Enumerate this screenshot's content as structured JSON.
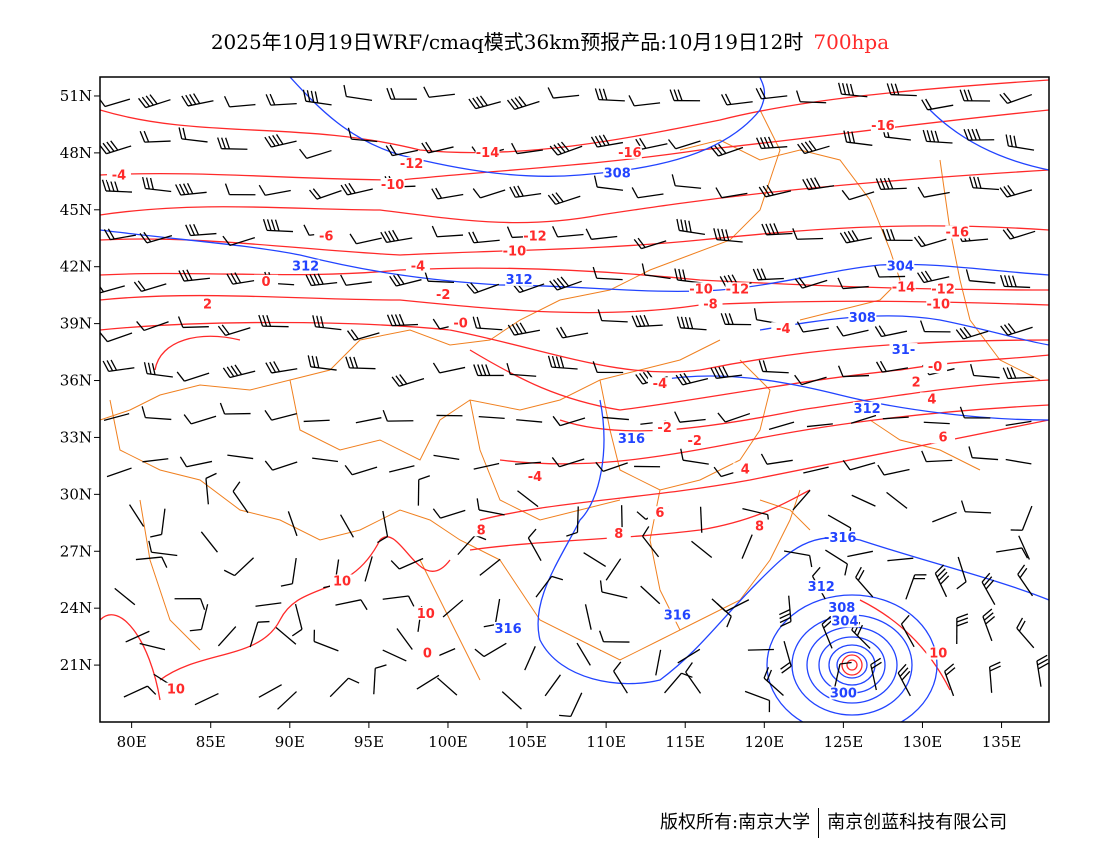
{
  "title": {
    "main": "2025年10月19日WRF/cmaq模式36km预报产品:10月19日12时",
    "level": "700hpa"
  },
  "footer": {
    "left": "版权所有:南京大学",
    "right": "南京创蓝科技有限公司"
  },
  "colors": {
    "isotherm": "#ff2a2a",
    "height": "#2244ff",
    "border": "#f08020",
    "barb": "#000000"
  },
  "map": {
    "lon_range": [
      78,
      138
    ],
    "lat_range": [
      18,
      52
    ],
    "lon_ticks": [
      "80E",
      "85E",
      "90E",
      "95E",
      "100E",
      "105E",
      "110E",
      "115E",
      "120E",
      "125E",
      "130E",
      "135E"
    ],
    "lat_ticks": [
      "51N",
      "48N",
      "45N",
      "42N",
      "39N",
      "36N",
      "33N",
      "30N",
      "27N",
      "24N",
      "21N"
    ],
    "temperature_labels": [
      {
        "t": "-4",
        "lon": 79.2,
        "lat": 46.7
      },
      {
        "t": "-12",
        "lon": 97.7,
        "lat": 47.3
      },
      {
        "t": "-14",
        "lon": 102.5,
        "lat": 47.9
      },
      {
        "t": "-16",
        "lon": 111.5,
        "lat": 47.9
      },
      {
        "t": "-10",
        "lon": 96.5,
        "lat": 46.2
      },
      {
        "t": "-6",
        "lon": 92.3,
        "lat": 43.5
      },
      {
        "t": "-12",
        "lon": 105.5,
        "lat": 43.5
      },
      {
        "t": "-10",
        "lon": 104.2,
        "lat": 42.7
      },
      {
        "t": "-4",
        "lon": 98.1,
        "lat": 41.9
      },
      {
        "t": "0",
        "lon": 88.5,
        "lat": 41.1
      },
      {
        "t": "-2",
        "lon": 99.7,
        "lat": 40.4
      },
      {
        "t": "2",
        "lon": 84.8,
        "lat": 39.9
      },
      {
        "t": "-0",
        "lon": 100.8,
        "lat": 38.9
      },
      {
        "t": "-16",
        "lon": 127.5,
        "lat": 49.3
      },
      {
        "t": "-16",
        "lon": 132.2,
        "lat": 43.7
      },
      {
        "t": "-14",
        "lon": 128.8,
        "lat": 40.8
      },
      {
        "t": "-12",
        "lon": 131.3,
        "lat": 40.7
      },
      {
        "t": "-10",
        "lon": 131.0,
        "lat": 39.9
      },
      {
        "t": "-10",
        "lon": 116.0,
        "lat": 40.7
      },
      {
        "t": "-12",
        "lon": 118.3,
        "lat": 40.7
      },
      {
        "t": "-8",
        "lon": 116.6,
        "lat": 39.9
      },
      {
        "t": "-4",
        "lon": 113.4,
        "lat": 35.7
      },
      {
        "t": "-2",
        "lon": 113.7,
        "lat": 33.4
      },
      {
        "t": "-2",
        "lon": 115.6,
        "lat": 32.7
      },
      {
        "t": "-4",
        "lon": 121.2,
        "lat": 38.6
      },
      {
        "t": "-0",
        "lon": 130.8,
        "lat": 36.6
      },
      {
        "t": "2",
        "lon": 129.6,
        "lat": 35.8
      },
      {
        "t": "4",
        "lon": 130.6,
        "lat": 34.9
      },
      {
        "t": "6",
        "lon": 131.3,
        "lat": 32.9
      },
      {
        "t": "4",
        "lon": 118.8,
        "lat": 31.2
      },
      {
        "t": "-4",
        "lon": 105.5,
        "lat": 30.8
      },
      {
        "t": "6",
        "lon": 113.4,
        "lat": 28.9
      },
      {
        "t": "8",
        "lon": 119.7,
        "lat": 28.2
      },
      {
        "t": "8",
        "lon": 110.8,
        "lat": 27.8
      },
      {
        "t": "8",
        "lon": 102.1,
        "lat": 28.0
      },
      {
        "t": "10",
        "lon": 93.3,
        "lat": 25.3
      },
      {
        "t": "10",
        "lon": 98.6,
        "lat": 23.6
      },
      {
        "t": "0",
        "lon": 98.7,
        "lat": 21.5
      },
      {
        "t": "10",
        "lon": 82.8,
        "lat": 19.6
      },
      {
        "t": "10",
        "lon": 131.0,
        "lat": 21.5
      }
    ],
    "height_labels": [
      {
        "t": "308",
        "lon": 110.7,
        "lat": 46.8
      },
      {
        "t": "312",
        "lon": 91.0,
        "lat": 41.9
      },
      {
        "t": "312",
        "lon": 104.5,
        "lat": 41.2
      },
      {
        "t": "304",
        "lon": 128.6,
        "lat": 41.9
      },
      {
        "t": "308",
        "lon": 126.2,
        "lat": 39.2
      },
      {
        "t": "31-",
        "lon": 128.8,
        "lat": 37.5
      },
      {
        "t": "312",
        "lon": 126.5,
        "lat": 34.4
      },
      {
        "t": "316",
        "lon": 111.6,
        "lat": 32.8
      },
      {
        "t": "-316",
        "lon": 124.8,
        "lat": 27.6
      },
      {
        "t": "316",
        "lon": 103.8,
        "lat": 22.8
      },
      {
        "t": "316",
        "lon": 114.5,
        "lat": 23.5
      },
      {
        "t": "312",
        "lon": 123.6,
        "lat": 25.0
      },
      {
        "t": "308",
        "lon": 124.9,
        "lat": 23.9
      },
      {
        "t": "304",
        "lon": 125.1,
        "lat": 23.2
      },
      {
        "t": "300",
        "lon": 125.0,
        "lat": 19.4
      }
    ]
  }
}
